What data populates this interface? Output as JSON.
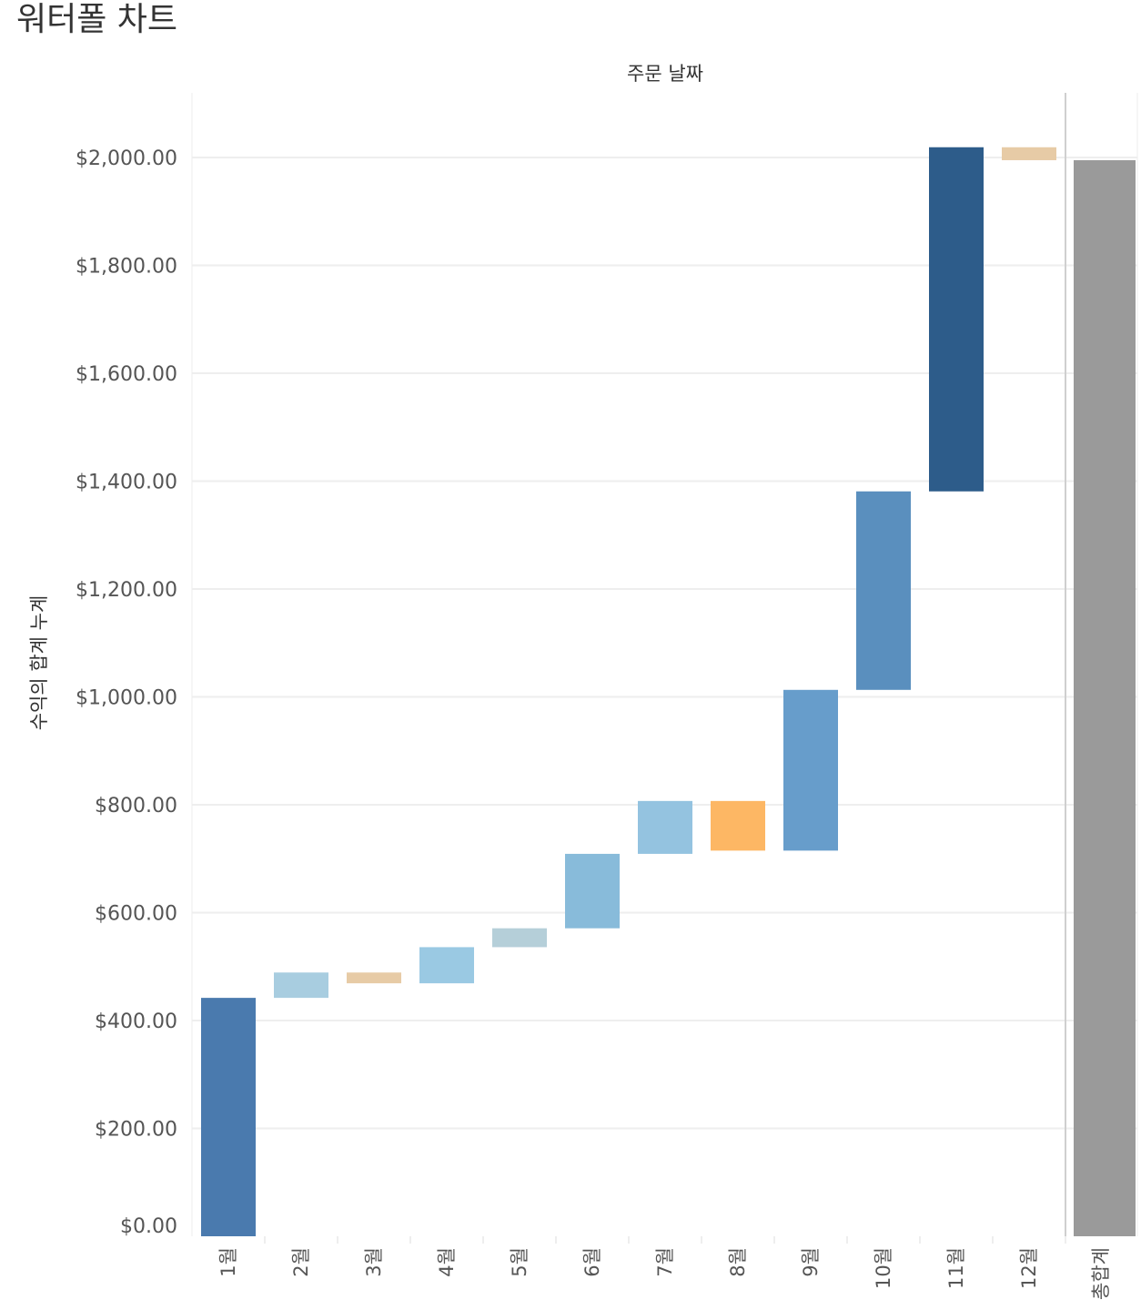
{
  "page": {
    "title": "워터폴 차트"
  },
  "chart_data": {
    "type": "bar",
    "subtype": "waterfall",
    "column_header": "주문 날짜",
    "ylabel": "수익의 합계 누계",
    "ylim": [
      0,
      2120
    ],
    "yticks": [
      {
        "value": 0,
        "label": "$0.00"
      },
      {
        "value": 200,
        "label": "$200.00"
      },
      {
        "value": 400,
        "label": "$400.00"
      },
      {
        "value": 600,
        "label": "$600.00"
      },
      {
        "value": 800,
        "label": "$800.00"
      },
      {
        "value": 1000,
        "label": "$1,000.00"
      },
      {
        "value": 1200,
        "label": "$1,200.00"
      },
      {
        "value": 1400,
        "label": "$1,400.00"
      },
      {
        "value": 1600,
        "label": "$1,600.00"
      },
      {
        "value": 1800,
        "label": "$1,800.00"
      },
      {
        "value": 2000,
        "label": "$2,000.00"
      }
    ],
    "categories": [
      "1월",
      "2월",
      "3월",
      "4월",
      "5월",
      "6월",
      "7월",
      "8월",
      "9월",
      "10월",
      "11월",
      "12월"
    ],
    "values": [
      442,
      47,
      -20,
      67,
      35,
      138,
      98,
      -92,
      298,
      368,
      638,
      -24
    ],
    "colors": [
      "#4a7aae",
      "#a8cde0",
      "#e7cba6",
      "#9ac9e3",
      "#b5cfd9",
      "#88bbda",
      "#94c3e0",
      "#fdb764",
      "#679dcb",
      "#5a8fbe",
      "#2d5c8a",
      "#e7cba6"
    ],
    "total": {
      "label": "총합계",
      "value": 1995,
      "color": "#9a9a9a"
    }
  }
}
